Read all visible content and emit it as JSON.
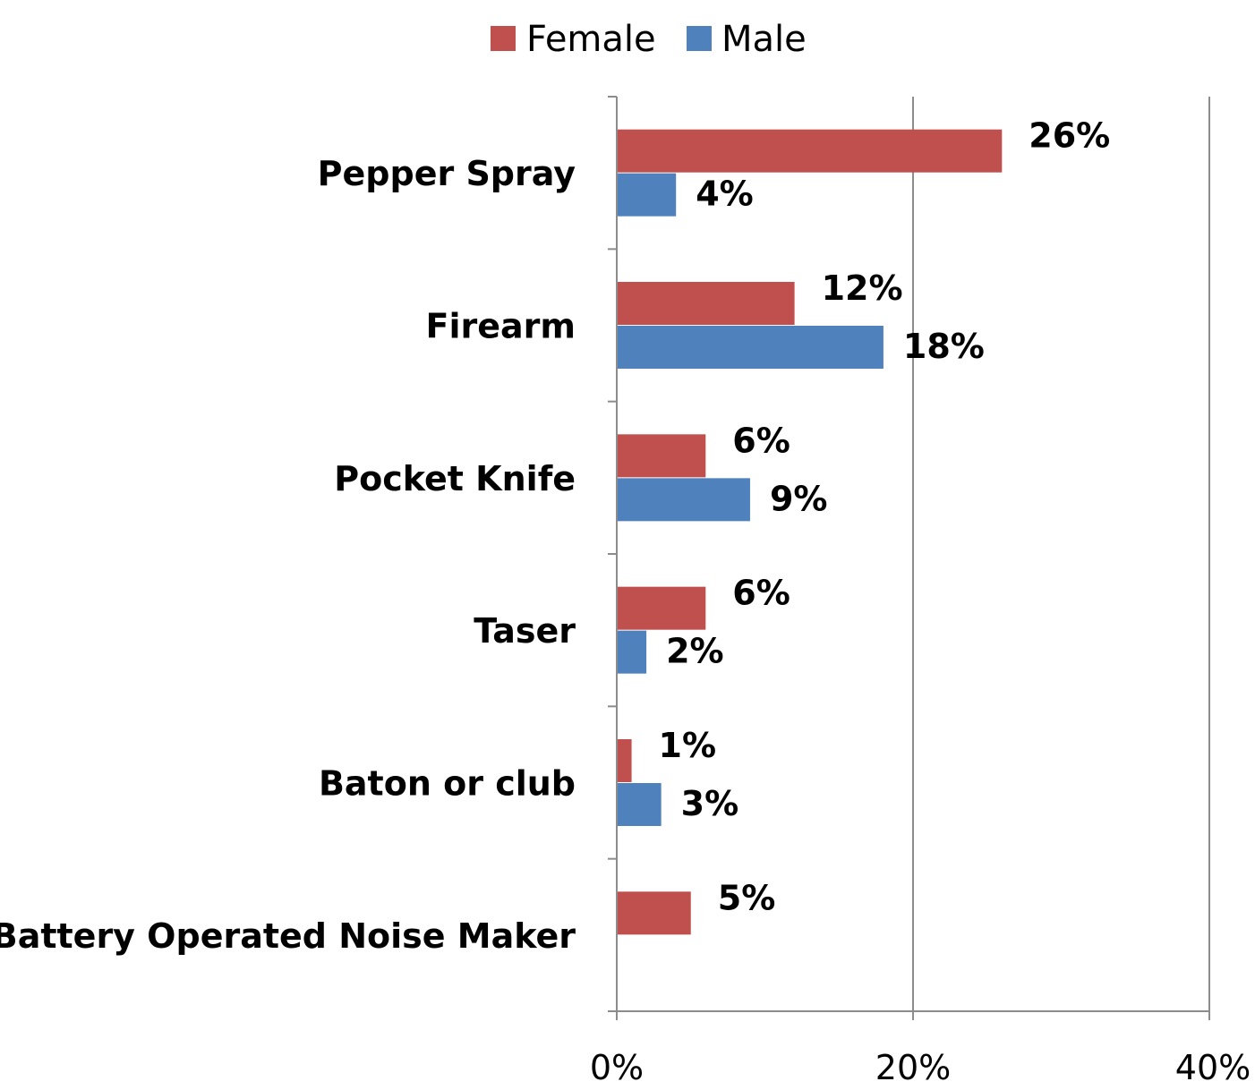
{
  "chart_data": {
    "type": "bar",
    "orientation": "horizontal",
    "categories": [
      "Pepper Spray",
      "Firearm",
      "Pocket Knife",
      "Taser",
      "Baton or club",
      "Battery Operated Noise Maker"
    ],
    "series": [
      {
        "name": "Female",
        "color": "#C0504D",
        "values": [
          26,
          12,
          6,
          6,
          1,
          5
        ],
        "labels": [
          "26%",
          "12%",
          "6%",
          "6%",
          "1%",
          "5%"
        ]
      },
      {
        "name": "Male",
        "color": "#4F81BD",
        "values": [
          4,
          18,
          9,
          2,
          3,
          null
        ],
        "labels": [
          "4%",
          "18%",
          "9%",
          "2%",
          "3%",
          null
        ]
      }
    ],
    "xlim": [
      0,
      40
    ],
    "xticks": [
      0,
      20,
      40
    ],
    "xtick_labels": [
      "0%",
      "20%",
      "40%"
    ],
    "value_unit": "%",
    "grid": "vertical",
    "legend": {
      "position": "top",
      "entries": [
        "Female",
        "Male"
      ]
    },
    "title": "",
    "xlabel": "",
    "ylabel": ""
  }
}
